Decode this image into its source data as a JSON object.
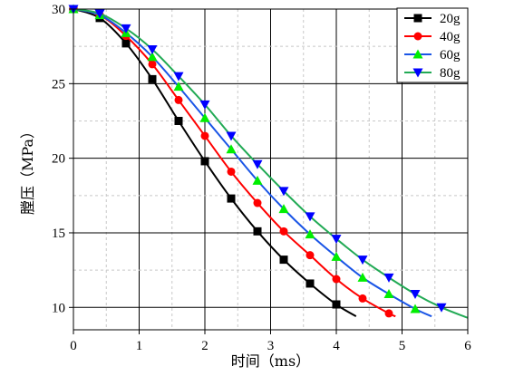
{
  "chart_data": {
    "type": "line",
    "title": "",
    "xlabel": "时间（ms）",
    "ylabel": "膛压（MPa）",
    "xlim": [
      0,
      6
    ],
    "ylim": [
      8.5,
      30
    ],
    "xticks": [
      "0",
      "1",
      "2",
      "3",
      "4",
      "5",
      "6"
    ],
    "yticks": [
      "10",
      "15",
      "20",
      "25",
      "30"
    ],
    "grid": true,
    "legend_position": "top-right",
    "series": [
      {
        "name": "20g",
        "color": "#000000",
        "marker": "square",
        "x": [
          0,
          0.4,
          0.8,
          1.2,
          1.6,
          2.0,
          2.4,
          2.8,
          3.2,
          3.6,
          4.0,
          4.3
        ],
        "y": [
          30,
          29.4,
          27.7,
          25.3,
          22.5,
          19.8,
          17.3,
          15.1,
          13.2,
          11.6,
          10.2,
          9.4
        ]
      },
      {
        "name": "40g",
        "color": "#ff0000",
        "marker": "circle",
        "x": [
          0,
          0.4,
          0.8,
          1.2,
          1.6,
          2.0,
          2.4,
          2.8,
          3.2,
          3.6,
          4.0,
          4.4,
          4.8,
          4.9
        ],
        "y": [
          30,
          29.6,
          28.2,
          26.3,
          23.9,
          21.5,
          19.1,
          17.0,
          15.1,
          13.5,
          11.9,
          10.6,
          9.6,
          9.4
        ]
      },
      {
        "name": "60g",
        "color": "#00ee00",
        "line_color": "#1a55e6",
        "marker": "triangle-up",
        "x": [
          0,
          0.4,
          0.8,
          1.2,
          1.6,
          2.0,
          2.4,
          2.8,
          3.2,
          3.6,
          4.0,
          4.4,
          4.8,
          5.2,
          5.45
        ],
        "y": [
          30,
          29.6,
          28.4,
          26.8,
          24.8,
          22.7,
          20.6,
          18.5,
          16.6,
          14.9,
          13.4,
          12.0,
          10.9,
          9.9,
          9.4
        ]
      },
      {
        "name": "80g",
        "color": "#0000ff",
        "line_color": "#22aa55",
        "marker": "triangle-down",
        "x": [
          0,
          0.4,
          0.8,
          1.2,
          1.6,
          2.0,
          2.4,
          2.8,
          3.2,
          3.6,
          4.0,
          4.4,
          4.8,
          5.2,
          5.6,
          6.0
        ],
        "y": [
          30,
          29.7,
          28.7,
          27.3,
          25.5,
          23.6,
          21.5,
          19.6,
          17.8,
          16.1,
          14.6,
          13.2,
          12.0,
          10.9,
          10.0,
          9.3
        ]
      }
    ]
  }
}
